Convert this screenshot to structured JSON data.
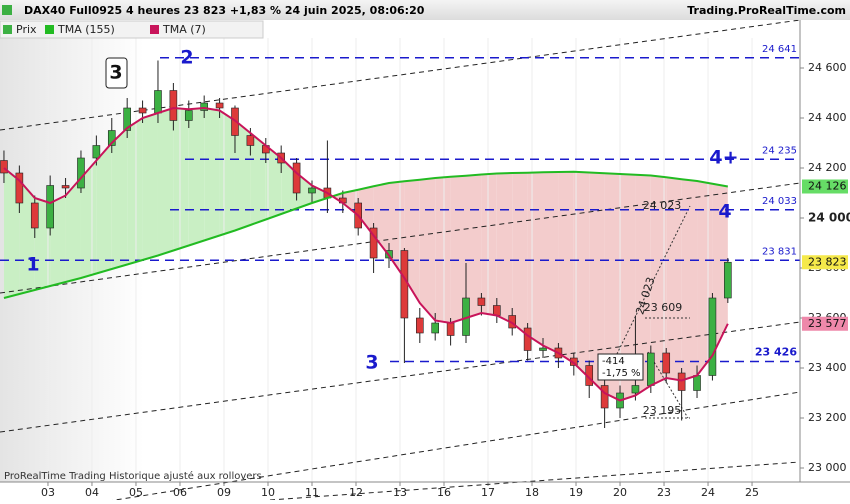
{
  "header": {
    "title": "DAX40 Full0925 4 heures 23 823 +1,83 % 24 juin 2025, 08:06:20",
    "site": "Trading.ProRealTime.com"
  },
  "chart_data": {
    "type": "candlestick",
    "price_legend": "Prix",
    "up_color": "#3cb043",
    "down_color": "#dd3a3a",
    "x": [
      -1,
      -0.65,
      -0.3,
      0.05,
      0.4,
      0.75,
      1.1,
      1.45,
      1.8,
      2.15,
      2.5,
      2.85,
      3.2,
      3.55,
      3.9,
      4.25,
      4.6,
      4.95,
      5.3,
      5.65,
      6,
      6.35,
      6.7,
      7.05,
      7.4,
      7.75,
      8.1,
      8.45,
      8.8,
      9.15,
      9.5,
      9.85,
      10.2,
      10.55,
      10.9,
      11.25,
      11.6,
      11.95,
      12.3,
      12.65,
      13,
      13.35,
      13.7,
      14.05,
      14.4,
      14.75,
      15.1,
      15.45
    ],
    "open": [
      24230,
      24180,
      24060,
      23960,
      24130,
      24120,
      24240,
      24290,
      24350,
      24440,
      24420,
      24510,
      24390,
      24430,
      24460,
      24440,
      24330,
      24290,
      24260,
      24220,
      24100,
      24120,
      24080,
      24060,
      23960,
      23840,
      23870,
      23600,
      23540,
      23580,
      23530,
      23680,
      23650,
      23610,
      23560,
      23470,
      23480,
      23440,
      23410,
      23330,
      23240,
      23300,
      23330,
      23460,
      23380,
      23310,
      23370,
      23680
    ],
    "high": [
      24270,
      24210,
      24090,
      24170,
      24160,
      24270,
      24330,
      24400,
      24480,
      24470,
      24630,
      24540,
      24470,
      24490,
      24480,
      24450,
      24360,
      24320,
      24290,
      24240,
      24150,
      24310,
      24110,
      24080,
      23980,
      23900,
      23880,
      23640,
      23620,
      23600,
      23820,
      23700,
      23680,
      23640,
      23580,
      23520,
      23500,
      23460,
      23430,
      23350,
      23330,
      23610,
      23490,
      23480,
      23400,
      23410,
      23700,
      23840
    ],
    "low": [
      24140,
      24020,
      23920,
      23930,
      24080,
      24100,
      24210,
      24260,
      24320,
      24380,
      24380,
      24350,
      24360,
      24400,
      24400,
      24260,
      24250,
      24220,
      24180,
      24070,
      24060,
      24020,
      24020,
      23930,
      23780,
      23800,
      23420,
      23500,
      23510,
      23490,
      23500,
      23610,
      23580,
      23530,
      23430,
      23440,
      23400,
      23370,
      23280,
      23160,
      23200,
      23270,
      23300,
      23340,
      23190,
      23280,
      23350,
      23660
    ],
    "close": [
      24180,
      24060,
      23960,
      24130,
      24120,
      24240,
      24290,
      24350,
      24440,
      24420,
      24510,
      24390,
      24430,
      24460,
      24440,
      24330,
      24290,
      24260,
      24220,
      24100,
      24120,
      24080,
      24060,
      23960,
      23840,
      23870,
      23600,
      23540,
      23580,
      23530,
      23680,
      23650,
      23610,
      23560,
      23470,
      23480,
      23440,
      23410,
      23330,
      23240,
      23300,
      23330,
      23460,
      23380,
      23310,
      23370,
      23680,
      23823
    ],
    "last_label": "23 823",
    "last_color": "#f5e94a",
    "overlays": [
      {
        "name": "TMA (155)",
        "color": "#22bb22",
        "last_label": "24 126",
        "last_color": "#66dd66",
        "values": [
          23680,
          23696,
          23712,
          23728,
          23744,
          23760,
          23778,
          23796,
          23814,
          23832,
          23850,
          23870,
          23890,
          23910,
          23930,
          23950,
          23972,
          23994,
          24016,
          24038,
          24060,
          24080,
          24100,
          24113,
          24127,
          24140,
          24147,
          24153,
          24160,
          24165,
          24169,
          24174,
          24178,
          24180,
          24181,
          24183,
          24184,
          24185,
          24182,
          24179,
          24176,
          24173,
          24170,
          24163,
          24155,
          24148,
          24137,
          24126
        ]
      },
      {
        "name": "TMA (7)",
        "color": "#c8145a",
        "last_label": "23 577",
        "last_color": "#ee88aa",
        "values": [
          24200,
          24150,
          24080,
          24060,
          24090,
          24160,
          24230,
          24300,
          24360,
          24400,
          24420,
          24440,
          24435,
          24440,
          24430,
          24390,
          24340,
          24290,
          24240,
          24180,
          24130,
          24100,
          24060,
          24010,
          23930,
          23850,
          23760,
          23660,
          23590,
          23580,
          23600,
          23620,
          23610,
          23580,
          23530,
          23490,
          23460,
          23420,
          23360,
          23300,
          23270,
          23290,
          23330,
          23360,
          23350,
          23370,
          23450,
          23577
        ]
      }
    ],
    "fill_up_color": "#c9efc4",
    "fill_down_color": "#f3cccc",
    "xlim": [
      -1.09,
      17.09
    ],
    "xticks": [
      {
        "value": 0,
        "label": "03"
      },
      {
        "value": 1,
        "label": "04"
      },
      {
        "value": 2,
        "label": "05"
      },
      {
        "value": 3,
        "label": "06"
      },
      {
        "value": 4,
        "label": "09"
      },
      {
        "value": 5,
        "label": "10"
      },
      {
        "value": 6,
        "label": "11"
      },
      {
        "value": 7,
        "label": "12"
      },
      {
        "value": 8,
        "label": "13"
      },
      {
        "value": 9,
        "label": "16"
      },
      {
        "value": 10,
        "label": "17"
      },
      {
        "value": 11,
        "label": "18"
      },
      {
        "value": 12,
        "label": "19"
      },
      {
        "value": 13,
        "label": "20"
      },
      {
        "value": 14,
        "label": "23"
      },
      {
        "value": 15,
        "label": "24"
      },
      {
        "value": 16,
        "label": "25"
      }
    ],
    "ylim": [
      22944,
      24720
    ],
    "yticks": [
      {
        "value": 24600,
        "label": "24 600"
      },
      {
        "value": 24400,
        "label": "24 400"
      },
      {
        "value": 24200,
        "label": "24 200"
      },
      {
        "value": 24000,
        "label": "24 000"
      },
      {
        "value": 23800,
        "label": "23 800"
      },
      {
        "value": 23600,
        "label": "23 600"
      },
      {
        "value": 23400,
        "label": "23 400"
      },
      {
        "value": 23200,
        "label": "23 200"
      },
      {
        "value": 23000,
        "label": "23 000"
      }
    ],
    "levels": [
      {
        "value": 24641,
        "label": "24 641"
      },
      {
        "value": 24235,
        "label": "24 235"
      },
      {
        "value": 24033,
        "label": "24 033"
      },
      {
        "value": 23831,
        "label": "23 831"
      },
      {
        "value": 23426,
        "label": "23 426"
      }
    ],
    "annotations": [
      "1",
      "2",
      "3",
      "3",
      "4",
      "4+",
      "24 023",
      "23 609",
      "23 195",
      "24 023",
      "-414",
      "-1,75 %"
    ],
    "footer": "ProRealTime Trading  Historique ajusté aux rollovers"
  }
}
